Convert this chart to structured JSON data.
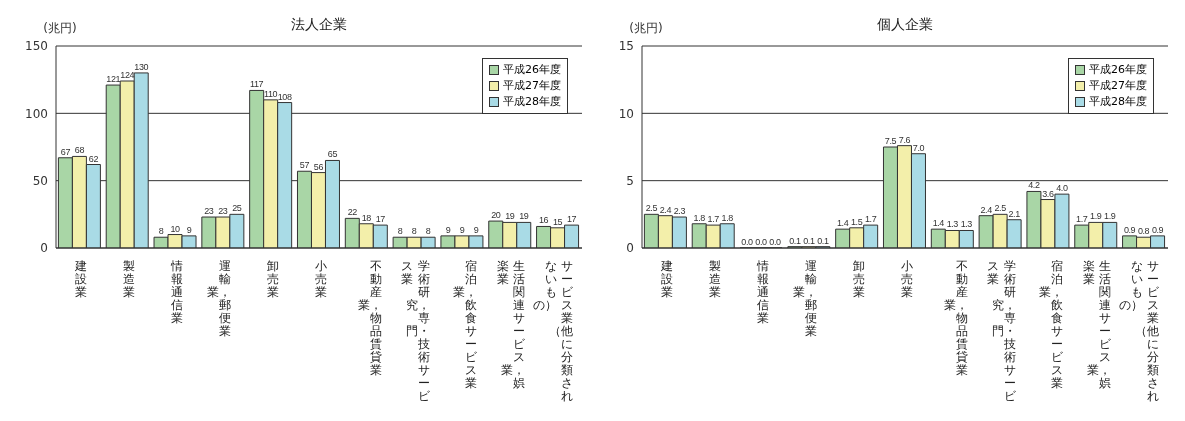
{
  "chart_data": [
    {
      "type": "bar",
      "title": "法人企業",
      "ylabel": "(兆円)",
      "categories": [
        "建設業",
        "製造業",
        "情報通信業",
        "運輸業，郵便業",
        "卸売業",
        "小売業",
        "不動産業，物品賃貸業",
        "学術研究，専門・技術サービス業",
        "宿泊業，飲食サービス業",
        "生活関連サービス業，娯楽業",
        "サービス業（他に分類されないもの）"
      ],
      "series": [
        {
          "name": "平成26年度",
          "color": "#a9d6a6",
          "values": [
            67,
            121,
            8,
            23,
            117,
            57,
            22,
            8,
            9,
            20,
            16
          ]
        },
        {
          "name": "平成27年度",
          "color": "#f3efaa",
          "values": [
            68,
            124,
            10,
            23,
            110,
            56,
            18,
            8,
            9,
            19,
            15
          ]
        },
        {
          "name": "平成28年度",
          "color": "#a9dbe6",
          "values": [
            62,
            130,
            9,
            25,
            108,
            65,
            17,
            8,
            9,
            19,
            17
          ]
        }
      ],
      "ylim": [
        0,
        150
      ],
      "yticks": [
        0,
        50,
        100,
        150
      ],
      "grid": "y",
      "legend": "top right",
      "data_labels": true
    },
    {
      "type": "bar",
      "title": "個人企業",
      "ylabel": "(兆円)",
      "categories": [
        "建設業",
        "製造業",
        "情報通信業",
        "運輸業，郵便業",
        "卸売業",
        "小売業",
        "不動産業，物品賃貸業",
        "学術研究，専門・技術サービス業",
        "宿泊業，飲食サービス業",
        "生活関連サービス業，娯楽業",
        "サービス業（他に分類されないもの）"
      ],
      "series": [
        {
          "name": "平成26年度",
          "color": "#a9d6a6",
          "values": [
            2.5,
            1.8,
            0.0,
            0.1,
            1.4,
            7.5,
            1.4,
            2.4,
            4.2,
            1.7,
            0.9
          ],
          "value_labels": [
            "2.5",
            "1.8",
            "0.0",
            "0.1",
            "1.4",
            "7.5",
            "1.4",
            "2.4",
            "4.2",
            "1.7",
            "0.9"
          ]
        },
        {
          "name": "平成27年度",
          "color": "#f3efaa",
          "values": [
            2.4,
            1.7,
            0.0,
            0.1,
            1.5,
            7.6,
            1.3,
            2.5,
            3.6,
            1.9,
            0.8
          ],
          "value_labels": [
            "2.4",
            "1.7",
            "0.0",
            "0.1",
            "1.5",
            "7.6",
            "1.3",
            "2.5",
            "3.6",
            "1.9",
            "0.8"
          ]
        },
        {
          "name": "平成28年度",
          "color": "#a9dbe6",
          "values": [
            2.3,
            1.8,
            0.0,
            0.1,
            1.7,
            7.0,
            1.3,
            2.1,
            4.0,
            1.9,
            0.9
          ],
          "value_labels": [
            "2.3",
            "1.8",
            "0.0",
            "0.1",
            "1.7",
            "7.0",
            "1.3",
            "2.1",
            "4.0",
            "1.9",
            "0.9"
          ]
        }
      ],
      "ylim": [
        0,
        15
      ],
      "yticks": [
        0,
        5,
        10,
        15
      ],
      "grid": "y",
      "legend": "top right"
    }
  ]
}
